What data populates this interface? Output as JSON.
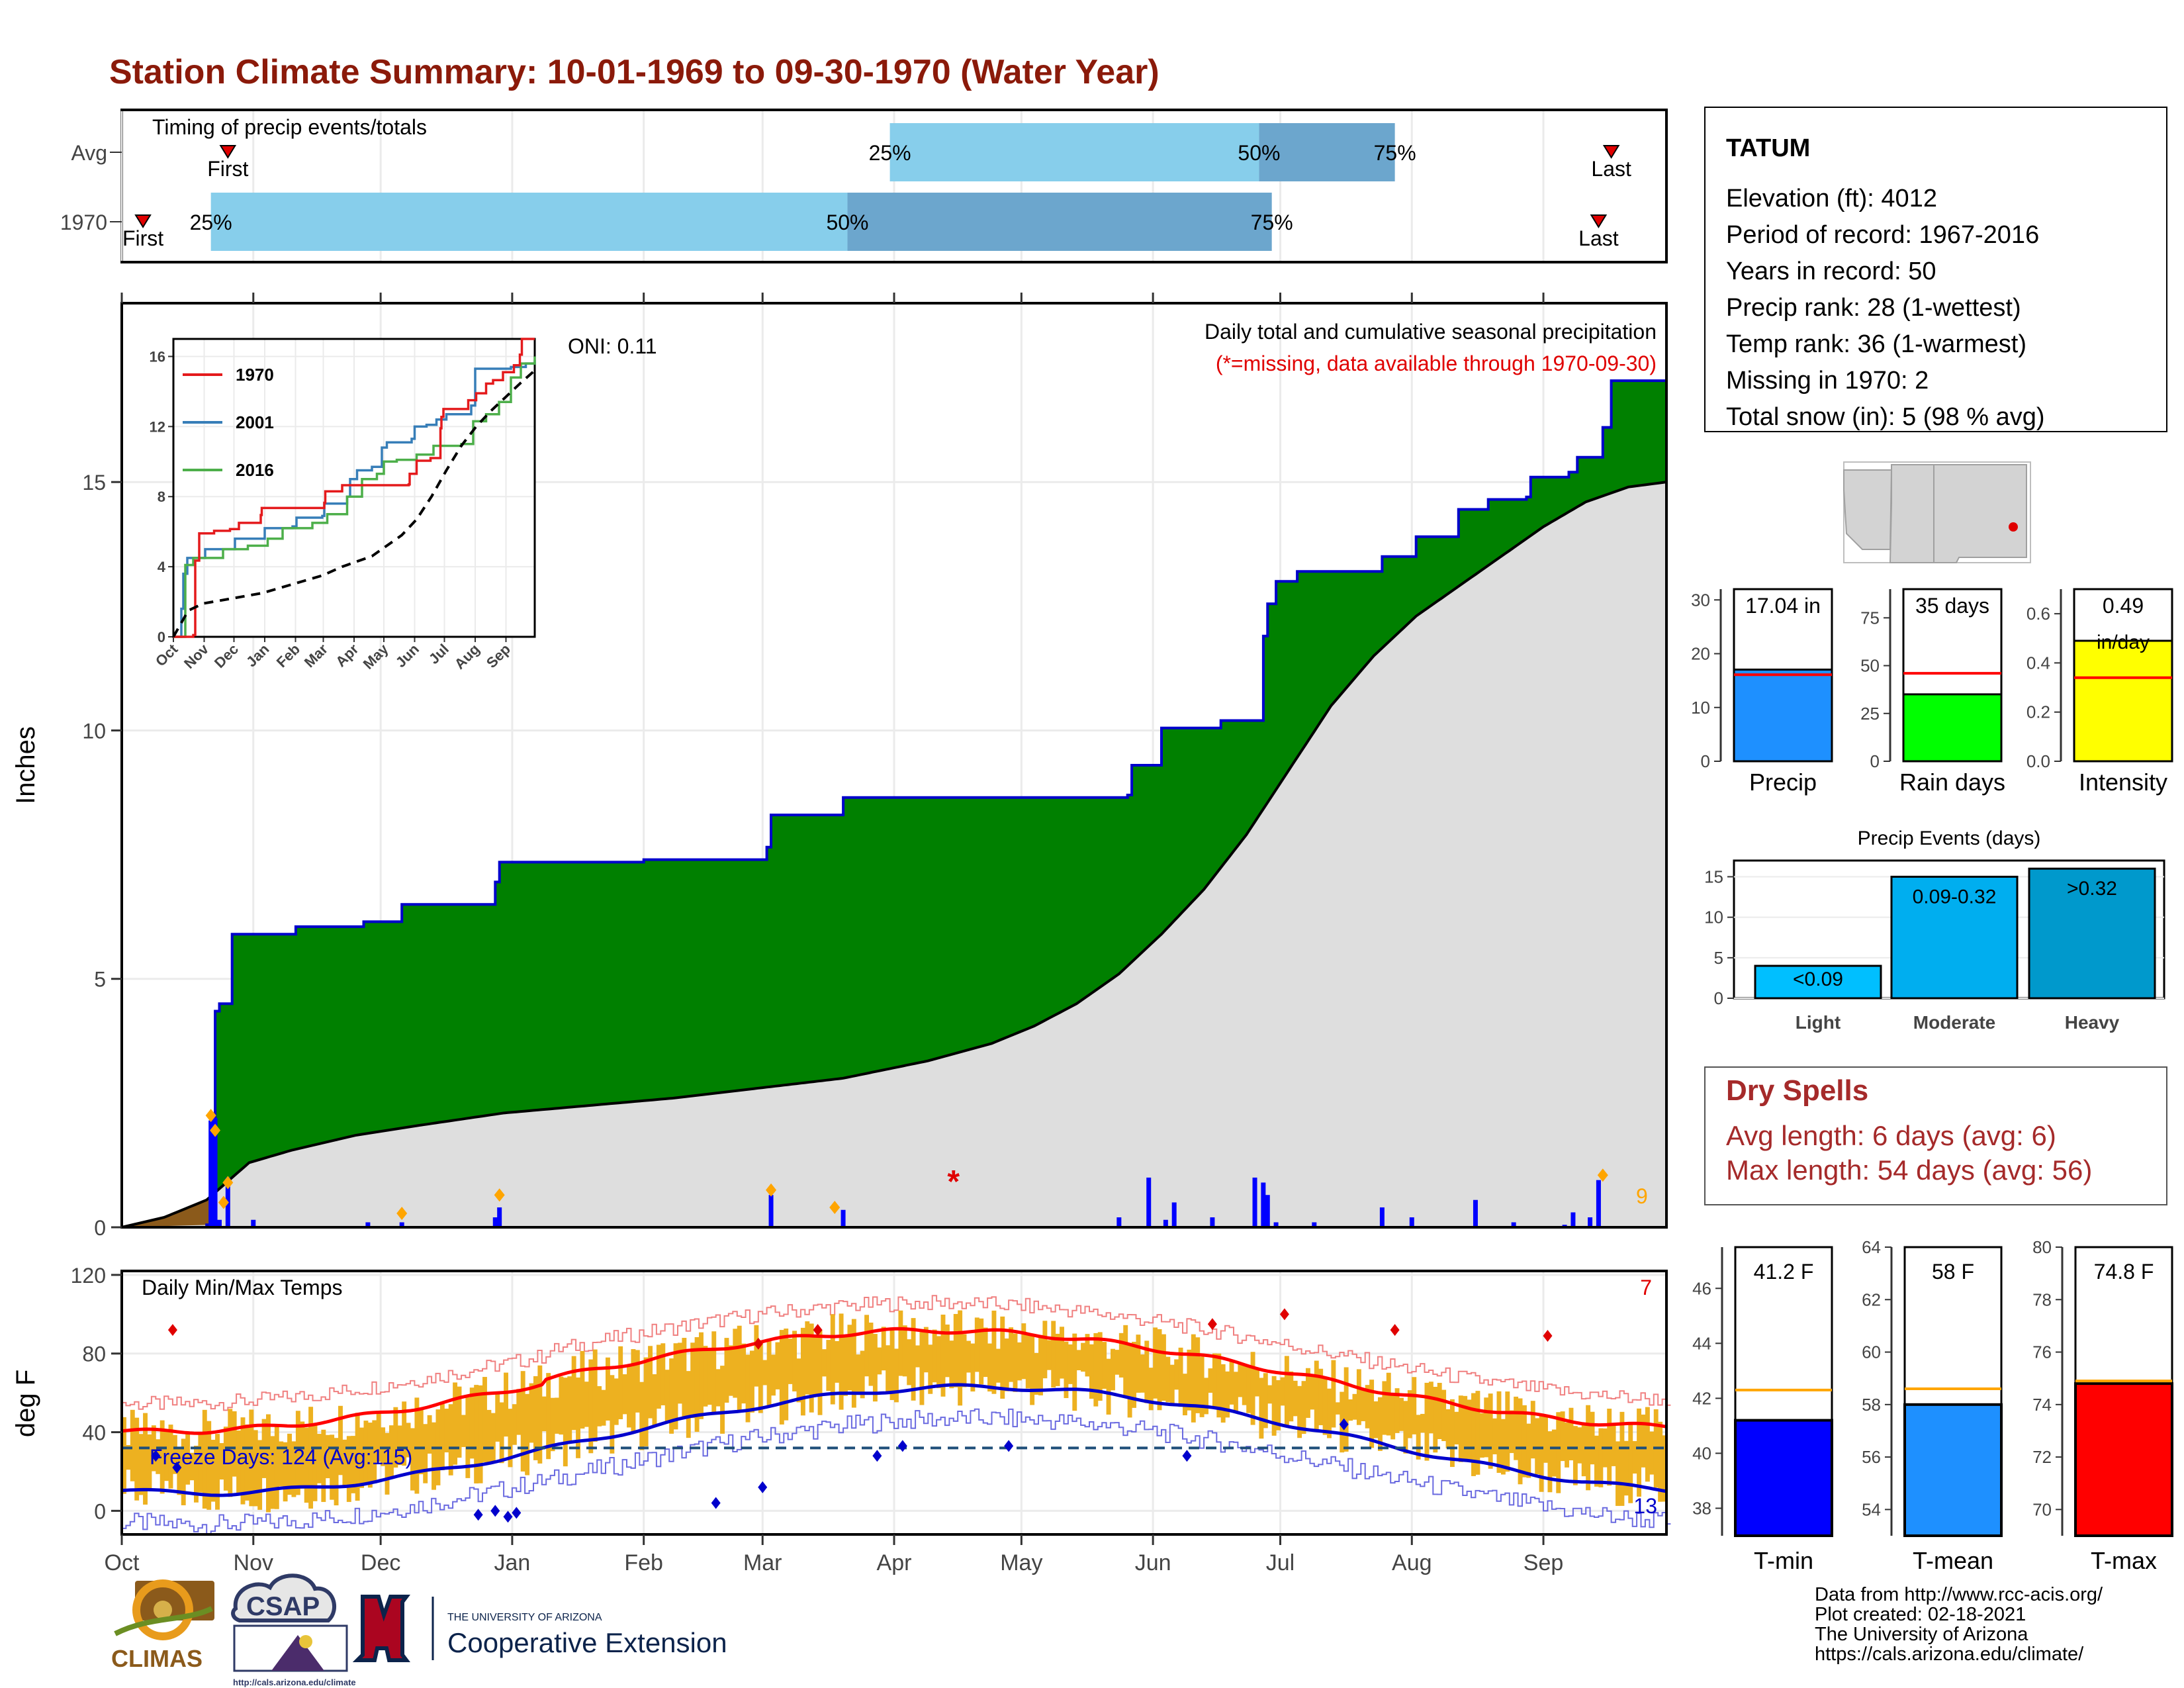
{
  "title": "Station Climate Summary: 10-01-1969 to 09-30-1970 (Water Year)",
  "colors": {
    "title": "#8B1A0A",
    "quartile_light": "#87CEEB",
    "quartile_dark": "#6CA6CD",
    "marker": "#E00000",
    "cum_fill": "#008000",
    "cum_line": "#0000CC",
    "avg_fill": "#DEDEDE",
    "avg_line": "#000000",
    "brown": "#8B5A1B",
    "daily_bar": "#0000FF",
    "diamond": "#FFA500",
    "temp_bar": "#EDB120",
    "tmax_avg": "#FF0000",
    "tmin_avg": "#0000CC",
    "dry_title": "#A52A2A"
  },
  "timing": {
    "label": "Timing of precip events/totals",
    "rows": [
      {
        "label": "Avg",
        "first_day": 25,
        "last_day": 351,
        "q25": 181,
        "q50": 268,
        "q75": 300,
        "first_label": "First",
        "last_label": "Last",
        "p25": "25%",
        "p50": "50%",
        "p75": "75%"
      },
      {
        "label": "1970",
        "first_day": 5,
        "last_day": 348,
        "q25": 21,
        "q50": 171,
        "q75": 271,
        "first_label": "First",
        "last_label": "Last",
        "p25": "25%",
        "p50": "50%",
        "p75": "75%"
      }
    ]
  },
  "months": [
    "Oct",
    "Nov",
    "Dec",
    "Jan",
    "Feb",
    "Mar",
    "Apr",
    "May",
    "Jun",
    "Jul",
    "Aug",
    "Sep"
  ],
  "month_starts": [
    0,
    31,
    61,
    92,
    123,
    151,
    182,
    212,
    243,
    273,
    304,
    335
  ],
  "precip_chart": {
    "ylabel": "Inches",
    "yticks": [
      0,
      5,
      10,
      15
    ],
    "ylim": [
      0,
      18.6
    ],
    "title_line1": "Daily total and cumulative seasonal precipitation",
    "title_line2": "(*=missing, data available through 1970-09-30)",
    "oni": "ONI: 0.11",
    "count_label": "9"
  },
  "chart_data": {
    "type": "area",
    "cumulative_1970": [
      [
        0,
        0
      ],
      [
        20,
        0.05
      ],
      [
        21,
        2.2
      ],
      [
        22,
        4.35
      ],
      [
        23,
        4.5
      ],
      [
        26,
        5.9
      ],
      [
        40,
        5.9
      ],
      [
        41,
        6.05
      ],
      [
        56,
        6.05
      ],
      [
        57,
        6.15
      ],
      [
        65,
        6.15
      ],
      [
        66,
        6.5
      ],
      [
        87,
        6.5
      ],
      [
        88,
        6.95
      ],
      [
        89,
        7.35
      ],
      [
        122,
        7.35
      ],
      [
        123,
        7.4
      ],
      [
        151,
        7.4
      ],
      [
        152,
        7.65
      ],
      [
        153,
        8.3
      ],
      [
        169,
        8.3
      ],
      [
        170,
        8.65
      ],
      [
        196,
        8.65
      ],
      [
        237,
        8.7
      ],
      [
        238,
        9.3
      ],
      [
        244,
        9.3
      ],
      [
        245,
        10.05
      ],
      [
        258,
        10.05
      ],
      [
        259,
        10.2
      ],
      [
        268,
        10.2
      ],
      [
        269,
        11.9
      ],
      [
        270,
        12.55
      ],
      [
        272,
        13.0
      ],
      [
        277,
        13.2
      ],
      [
        288,
        13.2
      ],
      [
        296,
        13.2
      ],
      [
        297,
        13.5
      ],
      [
        305,
        13.9
      ],
      [
        314,
        13.9
      ],
      [
        315,
        14.45
      ],
      [
        321,
        14.45
      ],
      [
        322,
        14.65
      ],
      [
        331,
        14.7
      ],
      [
        332,
        15.1
      ],
      [
        341,
        15.2
      ],
      [
        343,
        15.5
      ],
      [
        349,
        16.1
      ],
      [
        351,
        17.04
      ],
      [
        364,
        17.04
      ]
    ],
    "average_cumulative": [
      [
        0,
        0
      ],
      [
        10,
        0.2
      ],
      [
        20,
        0.55
      ],
      [
        30,
        1.3
      ],
      [
        40,
        1.55
      ],
      [
        55,
        1.85
      ],
      [
        70,
        2.05
      ],
      [
        90,
        2.3
      ],
      [
        110,
        2.45
      ],
      [
        130,
        2.6
      ],
      [
        150,
        2.8
      ],
      [
        170,
        3.0
      ],
      [
        190,
        3.35
      ],
      [
        205,
        3.7
      ],
      [
        215,
        4.05
      ],
      [
        225,
        4.5
      ],
      [
        235,
        5.1
      ],
      [
        245,
        5.9
      ],
      [
        255,
        6.8
      ],
      [
        265,
        7.9
      ],
      [
        275,
        9.2
      ],
      [
        285,
        10.5
      ],
      [
        295,
        11.5
      ],
      [
        305,
        12.3
      ],
      [
        315,
        12.9
      ],
      [
        325,
        13.5
      ],
      [
        335,
        14.1
      ],
      [
        345,
        14.6
      ],
      [
        355,
        14.9
      ],
      [
        364,
        15.0
      ]
    ],
    "daily_precip": [
      [
        21,
        2.15
      ],
      [
        22,
        2.2
      ],
      [
        23,
        0.15
      ],
      [
        25,
        1.0
      ],
      [
        31,
        0.15
      ],
      [
        58,
        0.1
      ],
      [
        66,
        0.1
      ],
      [
        88,
        0.2
      ],
      [
        89,
        0.4
      ],
      [
        153,
        0.65
      ],
      [
        170,
        0.35
      ],
      [
        235,
        0.2
      ],
      [
        242,
        1.0
      ],
      [
        246,
        0.15
      ],
      [
        248,
        0.5
      ],
      [
        257,
        0.2
      ],
      [
        267,
        1.0
      ],
      [
        269,
        0.9
      ],
      [
        270,
        0.65
      ],
      [
        272,
        0.1
      ],
      [
        281,
        0.1
      ],
      [
        297,
        0.4
      ],
      [
        304,
        0.2
      ],
      [
        319,
        0.55
      ],
      [
        328,
        0.1
      ],
      [
        340,
        0.05
      ],
      [
        342,
        0.3
      ],
      [
        346,
        0.2
      ],
      [
        348,
        0.95
      ]
    ],
    "diamonds": [
      [
        21,
        2.25
      ],
      [
        22,
        1.95
      ],
      [
        24,
        0.5
      ],
      [
        25,
        0.9
      ],
      [
        66,
        0.28
      ],
      [
        89,
        0.65
      ],
      [
        153,
        0.75
      ],
      [
        168,
        0.4
      ],
      [
        349,
        1.05
      ]
    ],
    "missing_days": [
      [
        196,
        1.0
      ]
    ],
    "inset": {
      "years": [
        "1970",
        "2001",
        "2016"
      ],
      "colors": [
        "#E41A1C",
        "#377EB8",
        "#4DAF4A"
      ],
      "yticks": [
        0,
        4,
        8,
        12,
        16
      ],
      "ylim": [
        0,
        17
      ],
      "xticklabels": [
        "Oct",
        "Nov",
        "Dec",
        "Jan",
        "Feb",
        "Mar",
        "Apr",
        "May",
        "Jun",
        "Jul",
        "Aug",
        "Sep"
      ],
      "series_1970": [
        [
          0,
          0
        ],
        [
          20,
          0.1
        ],
        [
          22,
          4.35
        ],
        [
          26,
          5.9
        ],
        [
          40,
          5.9
        ],
        [
          41,
          6.05
        ],
        [
          57,
          6.15
        ],
        [
          66,
          6.5
        ],
        [
          88,
          6.95
        ],
        [
          89,
          7.35
        ],
        [
          152,
          7.65
        ],
        [
          153,
          8.3
        ],
        [
          170,
          8.65
        ],
        [
          237,
          8.7
        ],
        [
          238,
          9.3
        ],
        [
          245,
          10.05
        ],
        [
          259,
          10.2
        ],
        [
          269,
          11.9
        ],
        [
          270,
          12.55
        ],
        [
          272,
          13.0
        ],
        [
          297,
          13.5
        ],
        [
          305,
          13.9
        ],
        [
          315,
          14.45
        ],
        [
          322,
          14.65
        ],
        [
          332,
          15.1
        ],
        [
          343,
          15.5
        ],
        [
          349,
          16.1
        ],
        [
          351,
          17.04
        ],
        [
          364,
          17.04
        ]
      ],
      "series_2001": [
        [
          0,
          0
        ],
        [
          8,
          1.6
        ],
        [
          10,
          3.6
        ],
        [
          14,
          4.5
        ],
        [
          30,
          4.5
        ],
        [
          32,
          5.0
        ],
        [
          60,
          5.0
        ],
        [
          62,
          5.6
        ],
        [
          90,
          5.6
        ],
        [
          92,
          6.2
        ],
        [
          120,
          6.3
        ],
        [
          124,
          6.8
        ],
        [
          150,
          6.9
        ],
        [
          152,
          7.6
        ],
        [
          175,
          8.0
        ],
        [
          178,
          9.0
        ],
        [
          185,
          9.5
        ],
        [
          200,
          9.7
        ],
        [
          210,
          10.8
        ],
        [
          215,
          11.1
        ],
        [
          240,
          11.3
        ],
        [
          243,
          12.0
        ],
        [
          255,
          12.1
        ],
        [
          265,
          12.4
        ],
        [
          275,
          12.7
        ],
        [
          300,
          13.2
        ],
        [
          304,
          15.3
        ],
        [
          340,
          15.4
        ],
        [
          355,
          15.6
        ],
        [
          364,
          15.8
        ]
      ],
      "series_2016": [
        [
          0,
          0
        ],
        [
          12,
          4.1
        ],
        [
          20,
          4.5
        ],
        [
          45,
          4.5
        ],
        [
          50,
          5.0
        ],
        [
          75,
          5.2
        ],
        [
          95,
          5.6
        ],
        [
          110,
          6.2
        ],
        [
          140,
          6.5
        ],
        [
          155,
          7.0
        ],
        [
          175,
          8.0
        ],
        [
          190,
          9.0
        ],
        [
          205,
          9.3
        ],
        [
          212,
          10.0
        ],
        [
          225,
          10.1
        ],
        [
          245,
          10.4
        ],
        [
          262,
          10.9
        ],
        [
          290,
          11.0
        ],
        [
          302,
          12.3
        ],
        [
          315,
          12.7
        ],
        [
          328,
          13.4
        ],
        [
          340,
          14.8
        ],
        [
          350,
          15.6
        ],
        [
          364,
          16.0
        ]
      ],
      "series_avg": [
        [
          0,
          0
        ],
        [
          15,
          1.5
        ],
        [
          30,
          1.9
        ],
        [
          60,
          2.2
        ],
        [
          90,
          2.5
        ],
        [
          120,
          3.0
        ],
        [
          150,
          3.5
        ],
        [
          170,
          4.0
        ],
        [
          200,
          4.6
        ],
        [
          215,
          5.2
        ],
        [
          230,
          5.8
        ],
        [
          245,
          6.7
        ],
        [
          260,
          8.0
        ],
        [
          275,
          9.5
        ],
        [
          290,
          10.9
        ],
        [
          305,
          12.0
        ],
        [
          320,
          12.9
        ],
        [
          335,
          13.7
        ],
        [
          350,
          14.5
        ],
        [
          364,
          15.2
        ]
      ]
    }
  },
  "temp_chart": {
    "ylabel": "deg F",
    "title": "Daily Min/Max Temps",
    "yticks": [
      0,
      40,
      80,
      120
    ],
    "ylim": [
      -12,
      122
    ],
    "freeze_label": "Freeze Days: 124 (Avg:115)",
    "hot_count": "7",
    "cold_count": "13",
    "freeze_line": 32
  },
  "station": {
    "name": "TATUM",
    "lines": [
      "Elevation (ft): 4012",
      "Period of record: 1967-2016",
      "Years in record: 50",
      "Precip rank: 28 (1-wettest)",
      "Temp rank: 36 (1-warmest)",
      "Missing in 1970: 2",
      "Total snow (in): 5 (98 % avg)"
    ]
  },
  "mini_bars": [
    {
      "label": "Precip",
      "value_label": "17.04 in",
      "value": 17.04,
      "avg": 16.1,
      "ylim": [
        0,
        32
      ],
      "yticks": [
        "0",
        "10",
        "20",
        "30"
      ],
      "color": "#1E90FF"
    },
    {
      "label": "Rain days",
      "value_label": "35 days",
      "value": 35,
      "avg": 46,
      "ylim": [
        0,
        90
      ],
      "yticks": [
        "0",
        "25",
        "50",
        "75"
      ],
      "color": "#00FF00"
    },
    {
      "label": "Intensity",
      "value_label": "0.49",
      "value_label2": "in/day",
      "value": 0.49,
      "avg": 0.34,
      "ylim": [
        0,
        0.7
      ],
      "yticks": [
        "0.0",
        "0.2",
        "0.4",
        "0.6"
      ],
      "color": "#FFFF00"
    }
  ],
  "events": {
    "title": "Precip Events (days)",
    "categories": [
      "Light",
      "Moderate",
      "Heavy"
    ],
    "labels": [
      "<0.09",
      "0.09-0.32",
      ">0.32"
    ],
    "values": [
      4,
      15,
      16
    ],
    "colors": [
      "#00BFFF",
      "#00AEEF",
      "#0099CC"
    ],
    "yticks": [
      "0",
      "5",
      "10",
      "15"
    ],
    "ylim": [
      0,
      17
    ]
  },
  "dry_spells": {
    "title": "Dry Spells",
    "avg": "Avg length: 6 days (avg: 6)",
    "max": "Max length: 54 days (avg: 56)"
  },
  "temp_bars": [
    {
      "label": "T-min",
      "value_label": "41.2 F",
      "value": 41.2,
      "avg": 42.3,
      "ylim": [
        37,
        47.5
      ],
      "yticks": [
        "38",
        "40",
        "42",
        "44",
        "46"
      ],
      "color": "#0000FF"
    },
    {
      "label": "T-mean",
      "value_label": "58 F",
      "value": 58.0,
      "avg": 58.6,
      "ylim": [
        53,
        64
      ],
      "yticks": [
        "54",
        "56",
        "58",
        "60",
        "62",
        "64"
      ],
      "color": "#1E90FF"
    },
    {
      "label": "T-max",
      "value_label": "74.8 F",
      "value": 74.8,
      "avg": 74.9,
      "ylim": [
        69,
        80
      ],
      "yticks": [
        "70",
        "72",
        "74",
        "76",
        "78",
        "80"
      ],
      "color": "#FF0000"
    }
  ],
  "footer": {
    "lines": [
      "Data from http://www.rcc-acis.org/",
      "Plot created: 02-18-2021",
      "The University of Arizona",
      "https://cals.arizona.edu/climate/"
    ],
    "logo_climas": "CLIMAS",
    "logo_csap": "CSAP",
    "logo_csap_url": "http://cals.arizona.edu/climate",
    "ua_small": "THE UNIVERSITY OF ARIZONA",
    "ua_big": "Cooperative Extension"
  }
}
